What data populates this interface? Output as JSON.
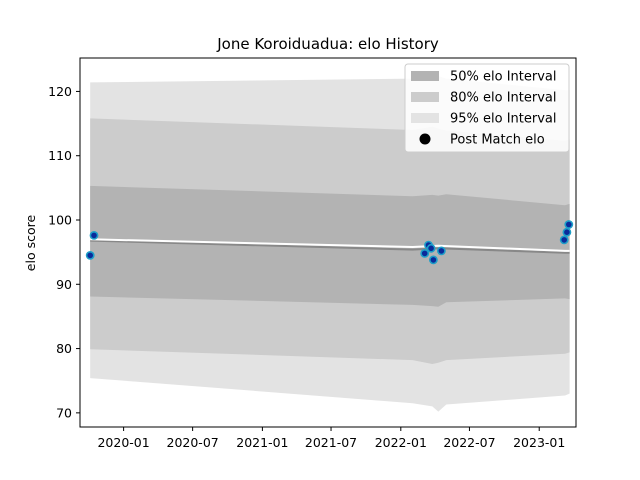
{
  "chart_data": {
    "type": "line",
    "title": "Jone Koroiduadua: elo History",
    "xlabel": "",
    "ylabel": "elo score",
    "xlim": [
      "2019-09-08",
      "2023-04-08"
    ],
    "ylim": [
      67.8,
      125.2
    ],
    "x_ticks": [
      "2020-01",
      "2020-07",
      "2021-01",
      "2021-07",
      "2022-01",
      "2022-07",
      "2023-01"
    ],
    "y_ticks": [
      70,
      80,
      90,
      100,
      110,
      120
    ],
    "grid": false,
    "legend_position": "top-right",
    "legend": [
      {
        "label": "50% elo Interval",
        "kind": "patch",
        "color": "#b3b3b3"
      },
      {
        "label": "80% elo Interval",
        "kind": "patch",
        "color": "#cccccc"
      },
      {
        "label": "95% elo Interval",
        "kind": "patch",
        "color": "#e3e3e3"
      },
      {
        "label": "Post Match elo",
        "kind": "marker",
        "color": "#000000"
      }
    ],
    "bands": {
      "x": [
        "2019-10-05",
        "2022-02-01",
        "2022-03-25",
        "2022-04-10",
        "2022-05-01",
        "2023-03-10",
        "2023-03-22"
      ],
      "p95_upper": [
        121.4,
        122.0,
        122.2,
        122.4,
        122.0,
        120.2,
        120.2
      ],
      "p95_lower": [
        75.4,
        71.5,
        71.0,
        70.2,
        71.3,
        72.7,
        73.0
      ],
      "p80_upper": [
        115.8,
        114.0,
        114.5,
        114.2,
        113.9,
        112.3,
        112.5
      ],
      "p80_lower": [
        79.9,
        78.2,
        77.6,
        77.8,
        78.2,
        79.2,
        79.4
      ],
      "p50_upper": [
        105.3,
        103.7,
        103.9,
        103.8,
        104.0,
        102.3,
        102.5
      ],
      "p50_lower": [
        88.1,
        86.8,
        86.6,
        86.5,
        87.2,
        87.8,
        87.7
      ]
    },
    "series": [
      {
        "name": "mean",
        "color": "#888888",
        "x": [
          "2019-10-05",
          "2022-02-01",
          "2022-04-10",
          "2023-03-10",
          "2023-03-22"
        ],
        "y": [
          96.8,
          95.4,
          95.6,
          94.9,
          94.9
        ]
      },
      {
        "name": "median",
        "color": "#ffffff",
        "x": [
          "2019-10-05",
          "2022-02-01",
          "2022-04-10",
          "2023-03-10",
          "2023-03-22"
        ],
        "y": [
          97.0,
          95.8,
          96.0,
          95.2,
          95.2
        ]
      }
    ],
    "points": {
      "name": "Post Match elo",
      "fill": "#0a2a9a",
      "edge": "#1e9fc8",
      "x": [
        "2019-10-05",
        "2019-10-15",
        "2022-03-05",
        "2022-03-15",
        "2022-03-22",
        "2022-03-28",
        "2022-04-18",
        "2023-03-08",
        "2023-03-15",
        "2023-03-20"
      ],
      "y": [
        94.5,
        97.6,
        94.8,
        96.1,
        95.6,
        93.8,
        95.2,
        96.9,
        98.1,
        99.3
      ]
    }
  }
}
